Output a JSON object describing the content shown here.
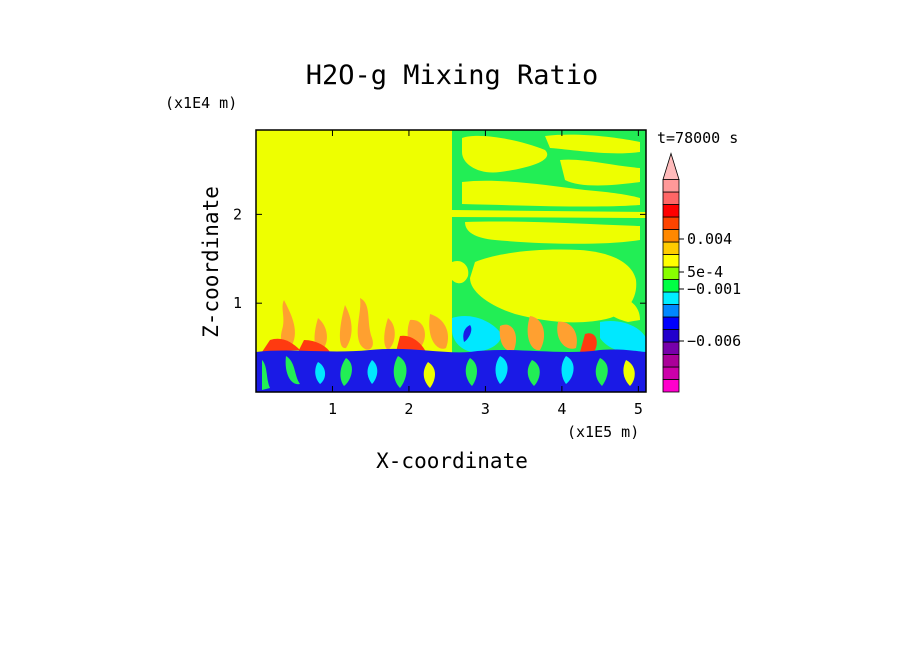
{
  "chart_data": {
    "type": "heatmap",
    "title": "H2O-g Mixing Ratio",
    "xlabel": "X-coordinate",
    "ylabel": "Z-coordinate",
    "x_scale_label": "(x1E5 m)",
    "y_scale_label": "(x1E4 m)",
    "time_label": "t=78000 s",
    "xlim": [
      0,
      5.1
    ],
    "ylim": [
      0,
      2.95
    ],
    "xticks": [
      {
        "value": 1,
        "label": "1"
      },
      {
        "value": 2,
        "label": "2"
      },
      {
        "value": 3,
        "label": "3"
      },
      {
        "value": 4,
        "label": "4"
      },
      {
        "value": 5,
        "label": "5"
      }
    ],
    "yticks": [
      {
        "value": 1,
        "label": "1"
      },
      {
        "value": 2,
        "label": "2"
      }
    ],
    "colorbar": {
      "colors": [
        "#ff00cc",
        "#cc00aa",
        "#aa0099",
        "#7700aa",
        "#2200cc",
        "#0000ff",
        "#0088ff",
        "#00eeff",
        "#00ff44",
        "#88ff00",
        "#ffff00",
        "#ffcc00",
        "#ff8800",
        "#ff4400",
        "#ff0000",
        "#ff6666",
        "#ff9999"
      ],
      "labels": [
        {
          "text": "0.004",
          "level": 0.004
        },
        {
          "text": "5e-4",
          "level": 0.0005
        },
        {
          "text": "−0.001",
          "level": -0.001
        },
        {
          "text": "−0.006",
          "level": -0.006
        }
      ]
    },
    "regions": [
      {
        "name": "upper-domain-left",
        "x": [
          0,
          2.55
        ],
        "z": [
          0.55,
          2.95
        ],
        "value_approx": 0.0003
      },
      {
        "name": "upper-domain-right",
        "x": [
          2.55,
          5.1
        ],
        "z": [
          0.55,
          2.95
        ],
        "value_approx": -0.0005
      },
      {
        "name": "boundary-layer",
        "x": [
          0,
          5.1
        ],
        "z": [
          0,
          0.5
        ],
        "value_approx": -0.004
      }
    ],
    "colors": {
      "yellow": "#eeff00",
      "green": "#22ee55",
      "blue": "#1a1ae6",
      "cyan": "#00e8ff",
      "orange": "#ffa030",
      "red": "#ff3a10"
    }
  }
}
